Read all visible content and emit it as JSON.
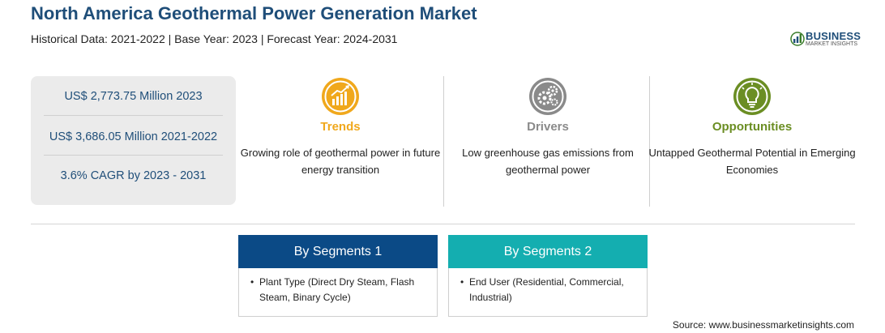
{
  "header": {
    "title": "North America Geothermal Power Generation Market",
    "subtitle": "Historical Data: 2021-2022 | Base Year: 2023 | Forecast Year: 2024-2031"
  },
  "logo": {
    "word": "BUSINESS",
    "sub": "MARKET INSIGHTS",
    "icon": "bar-chart-logo-icon"
  },
  "stats": [
    "US$ 2,773.75 Million 2023",
    "US$ 3,686.05 Million 2021-2022",
    "3.6% CAGR by 2023 - 2031"
  ],
  "cards": [
    {
      "label": "Trends",
      "color": "#f0a81c",
      "icon": "trend-chart-icon",
      "desc": "Growing role of geothermal power in future energy transition"
    },
    {
      "label": "Drivers",
      "color": "#8a8a8a",
      "icon": "gears-icon",
      "desc": "Low greenhouse gas emissions from geothermal power"
    },
    {
      "label": "Opportunities",
      "color": "#6b8e23",
      "icon": "lightbulb-icon",
      "desc": "Untapped Geothermal Potential in Emerging Economies"
    }
  ],
  "segments": [
    {
      "title": "By Segments 1",
      "color": "#0b4a86",
      "item": "Plant Type (Direct Dry Steam, Flash Steam, Binary Cycle)"
    },
    {
      "title": "By Segments 2",
      "color": "#14aeb0",
      "item": "End User (Residential, Commercial, Industrial)"
    }
  ],
  "source": "Source: www.businessmarketinsights.com"
}
